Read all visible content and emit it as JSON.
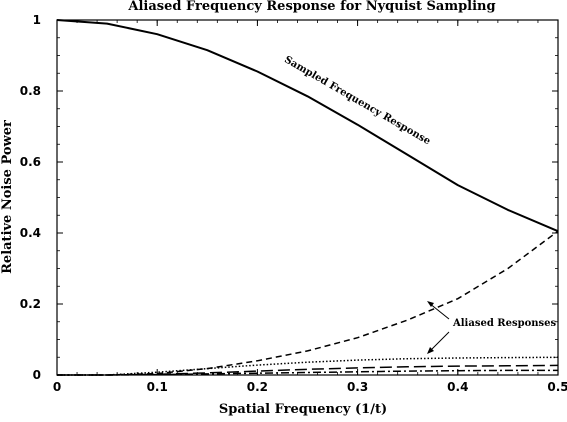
{
  "chart_data": {
    "type": "line",
    "title": "Aliased Frequency Response for Nyquist Sampling",
    "xlabel": "Spatial Frequency (1/t)",
    "ylabel": "Relative Noise Power",
    "xlim": [
      0,
      0.5
    ],
    "ylim": [
      0,
      1
    ],
    "xticks": [
      0,
      0.1,
      0.2,
      0.3,
      0.4,
      0.5
    ],
    "xtick_labels": [
      "0",
      "0.1",
      "0.2",
      "0.3",
      "0.4",
      "0.5"
    ],
    "yticks": [
      0,
      0.2,
      0.4,
      0.6,
      0.8,
      1
    ],
    "ytick_labels": [
      "0",
      "0.2",
      "0.4",
      "0.6",
      "0.8",
      "1"
    ],
    "grid": false,
    "x": [
      0,
      0.05,
      0.1,
      0.15,
      0.2,
      0.25,
      0.3,
      0.35,
      0.4,
      0.45,
      0.5
    ],
    "series": [
      {
        "style": "solid",
        "values": [
          1.0,
          0.99,
          0.96,
          0.915,
          0.855,
          0.785,
          0.705,
          0.62,
          0.535,
          0.465,
          0.405
        ]
      },
      {
        "style": "dashed",
        "values": [
          0.0,
          0.0,
          0.004,
          0.018,
          0.04,
          0.068,
          0.105,
          0.155,
          0.215,
          0.3,
          0.405
        ]
      },
      {
        "style": "dotted",
        "values": [
          0.0,
          0.0,
          0.008,
          0.018,
          0.028,
          0.036,
          0.042,
          0.046,
          0.048,
          0.049,
          0.05
        ]
      },
      {
        "style": "long-dashed",
        "values": [
          0.0,
          0.0,
          0.002,
          0.006,
          0.011,
          0.016,
          0.02,
          0.023,
          0.025,
          0.026,
          0.027
        ]
      },
      {
        "style": "dash-dot",
        "values": [
          0.0,
          0.0,
          0.001,
          0.003,
          0.005,
          0.007,
          0.009,
          0.011,
          0.012,
          0.013,
          0.013
        ]
      }
    ],
    "annotations": [
      {
        "text": "Sampled Frequency Response",
        "x": 0.3,
        "y": 0.72
      },
      {
        "text": "Aliased Responses",
        "x": 0.43,
        "y": 0.15
      }
    ]
  }
}
